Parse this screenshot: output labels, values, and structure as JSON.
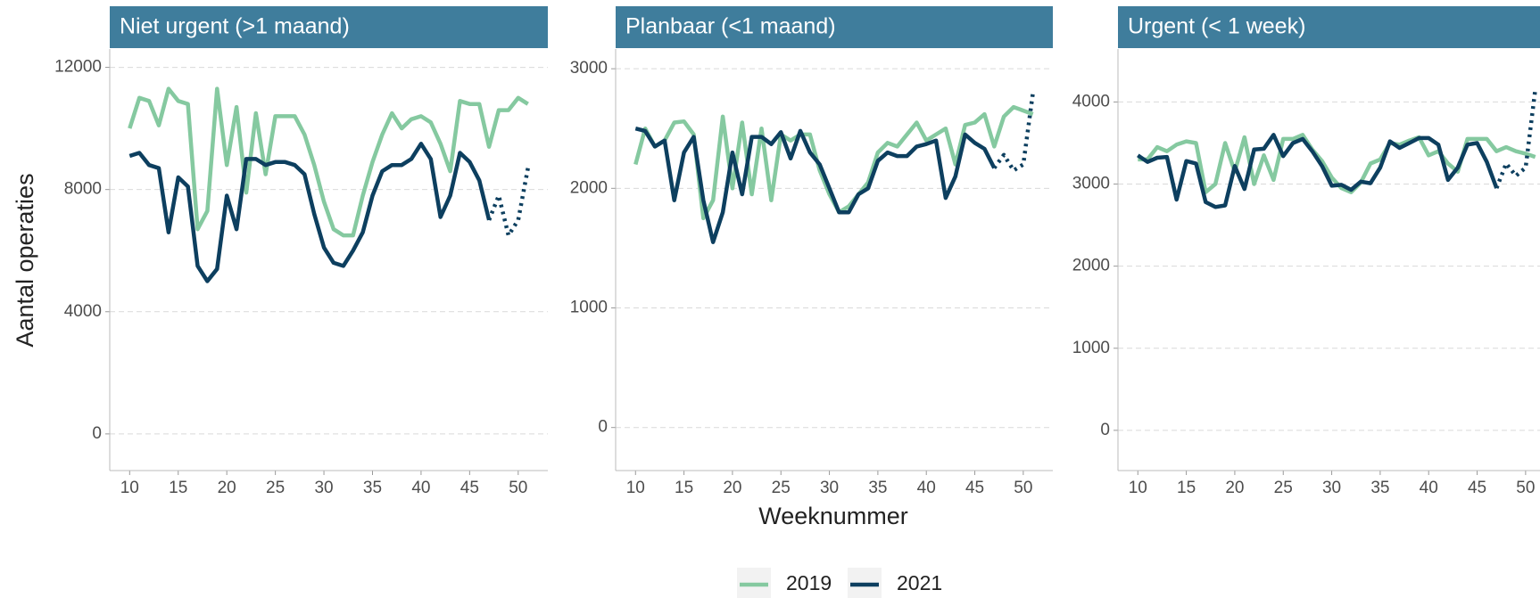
{
  "chart_data": [
    {
      "type": "line",
      "title": "Niet urgent (>1 maand)",
      "y_label": "Aantal operaties",
      "x": [
        10,
        11,
        12,
        13,
        14,
        15,
        16,
        17,
        18,
        19,
        20,
        21,
        22,
        23,
        24,
        25,
        26,
        27,
        28,
        29,
        30,
        31,
        32,
        33,
        34,
        35,
        36,
        37,
        38,
        39,
        40,
        41,
        42,
        43,
        44,
        45,
        46,
        47,
        48,
        49,
        50,
        51
      ],
      "series": [
        {
          "name": "2019",
          "color": "#85c9a0",
          "values": [
            10000,
            11000,
            10900,
            10100,
            11300,
            10900,
            10800,
            6700,
            7300,
            11300,
            8800,
            10700,
            7900,
            10500,
            8500,
            10400,
            10400,
            10400,
            9800,
            8800,
            7600,
            6700,
            6500,
            6500,
            7800,
            8900,
            9800,
            10500,
            10000,
            10300,
            10400,
            10200,
            9500,
            8600,
            10900,
            10800,
            10800,
            9400,
            10600,
            10600,
            11000,
            10800
          ]
        },
        {
          "name": "2021",
          "color": "#0d3f5f",
          "dotted_from": 47,
          "values": [
            9100,
            9200,
            8800,
            8700,
            6600,
            8400,
            8100,
            5500,
            5000,
            5400,
            7800,
            6700,
            9000,
            9000,
            8800,
            8900,
            8900,
            8800,
            8500,
            7200,
            6100,
            5600,
            5500,
            6000,
            6600,
            7800,
            8600,
            8800,
            8800,
            9000,
            9500,
            9000,
            7100,
            7800,
            9200,
            8900,
            8300,
            7000,
            7800,
            6500,
            7000,
            8700
          ]
        }
      ],
      "xlim": [
        7.95,
        53.05
      ],
      "xticks": [
        10,
        15,
        20,
        25,
        30,
        35,
        40,
        45,
        50
      ],
      "ylim": [
        -1200,
        12600
      ],
      "yticks": [
        0,
        4000,
        8000,
        12000
      ],
      "grid": true,
      "legend": "bottom"
    },
    {
      "type": "line",
      "title": "Planbaar (<1 maand)",
      "x_label": "Weeknummer",
      "x": [
        10,
        11,
        12,
        13,
        14,
        15,
        16,
        17,
        18,
        19,
        20,
        21,
        22,
        23,
        24,
        25,
        26,
        27,
        28,
        29,
        30,
        31,
        32,
        33,
        34,
        35,
        36,
        37,
        38,
        39,
        40,
        41,
        42,
        43,
        44,
        45,
        46,
        47,
        48,
        49,
        50,
        51
      ],
      "series": [
        {
          "name": "2019",
          "color": "#85c9a0",
          "values": [
            2200,
            2500,
            2350,
            2400,
            2550,
            2560,
            2450,
            1750,
            1900,
            2600,
            2000,
            2550,
            1950,
            2500,
            1900,
            2450,
            2400,
            2450,
            2450,
            2150,
            1950,
            1800,
            1850,
            1950,
            2050,
            2300,
            2380,
            2350,
            2450,
            2550,
            2400,
            2450,
            2500,
            2200,
            2530,
            2550,
            2620,
            2350,
            2600,
            2680,
            2650,
            2620
          ]
        },
        {
          "name": "2021",
          "color": "#0d3f5f",
          "dotted_from": 47,
          "values": [
            2500,
            2480,
            2350,
            2400,
            1900,
            2300,
            2430,
            1900,
            1550,
            1800,
            2300,
            1950,
            2430,
            2430,
            2370,
            2470,
            2250,
            2480,
            2300,
            2200,
            2000,
            1800,
            1800,
            1950,
            2000,
            2230,
            2300,
            2270,
            2270,
            2350,
            2370,
            2400,
            1920,
            2100,
            2450,
            2380,
            2330,
            2170,
            2280,
            2150,
            2200,
            2800
          ]
        }
      ],
      "xlim": [
        7.95,
        53.05
      ],
      "xticks": [
        10,
        15,
        20,
        25,
        30,
        35,
        40,
        45,
        50
      ],
      "ylim": [
        -360,
        3165
      ],
      "yticks": [
        0,
        1000,
        2000,
        3000
      ],
      "grid": true
    },
    {
      "type": "line",
      "title": "Urgent (< 1 week)",
      "x": [
        10,
        11,
        12,
        13,
        14,
        15,
        16,
        17,
        18,
        19,
        20,
        21,
        22,
        23,
        24,
        25,
        26,
        27,
        28,
        29,
        30,
        31,
        32,
        33,
        34,
        35,
        36,
        37,
        38,
        39,
        40,
        41,
        42,
        43,
        44,
        45,
        46,
        47,
        48,
        49,
        50,
        51
      ],
      "series": [
        {
          "name": "2019",
          "color": "#85c9a0",
          "values": [
            3300,
            3300,
            3450,
            3400,
            3480,
            3520,
            3500,
            2900,
            3000,
            3500,
            3150,
            3570,
            3000,
            3350,
            3050,
            3550,
            3550,
            3600,
            3420,
            3280,
            3080,
            2950,
            2900,
            3020,
            3250,
            3300,
            3500,
            3480,
            3530,
            3570,
            3350,
            3400,
            3250,
            3150,
            3550,
            3550,
            3550,
            3400,
            3450,
            3400,
            3370,
            3330
          ]
        },
        {
          "name": "2021",
          "color": "#0d3f5f",
          "dotted_from": 47,
          "values": [
            3350,
            3270,
            3320,
            3330,
            2810,
            3280,
            3250,
            2780,
            2720,
            2740,
            3220,
            2940,
            3420,
            3430,
            3600,
            3340,
            3500,
            3550,
            3400,
            3220,
            2980,
            2990,
            2930,
            3030,
            3010,
            3200,
            3520,
            3440,
            3500,
            3560,
            3560,
            3480,
            3050,
            3200,
            3480,
            3500,
            3270,
            2950,
            3250,
            3100,
            3200,
            4150
          ]
        }
      ],
      "xlim": [
        7.95,
        53.05
      ],
      "xticks": [
        10,
        15,
        20,
        25,
        30,
        35,
        40,
        45,
        50
      ],
      "ylim": [
        -490,
        4645
      ],
      "yticks": [
        0,
        1000,
        2000,
        3000,
        4000
      ],
      "grid": true
    }
  ]
}
